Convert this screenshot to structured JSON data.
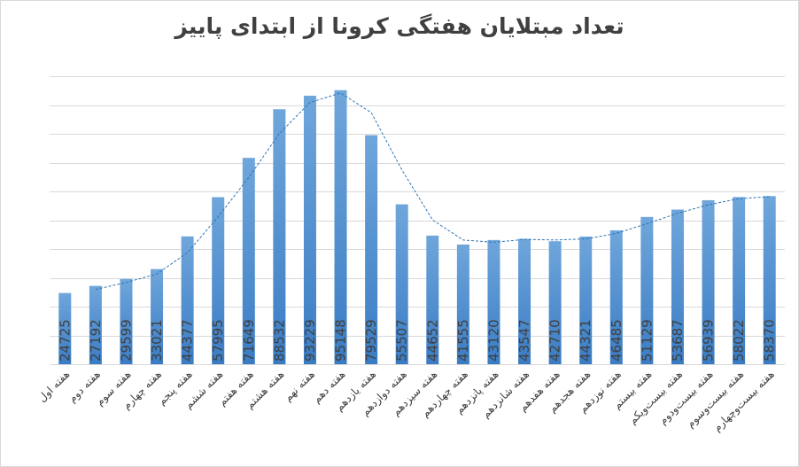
{
  "chart_data": {
    "type": "bar",
    "title": "تعداد مبتلایان هفتگی کرونا از ابتدای پاییز",
    "categories": [
      "هفته اول",
      "هفته دوم",
      "هفته سوم",
      "هفته چهارم",
      "هفته پنجم",
      "هفته ششم",
      "هفته هفتم",
      "هفته هشتم",
      "هفته نهم",
      "هفته دهم",
      "هفته یازدهم",
      "هفته دوازدهم",
      "هفته سیزدهم",
      "هفته چهاردهم",
      "هفته پانزدهم",
      "هفته شانزدهم",
      "هفته هفدهم",
      "هفته هجدهم",
      "هفته نوزدهم",
      "هفته بیستم",
      "هفته بیست‌ویکم",
      "هفته بیست‌ودوم",
      "هفته بیست‌وسوم",
      "هفته بیست‌وچهارم"
    ],
    "values": [
      24725,
      27192,
      29599,
      33021,
      44377,
      57995,
      71649,
      88532,
      93229,
      95148,
      79529,
      55507,
      44652,
      41555,
      43120,
      43547,
      42710,
      44321,
      46485,
      51129,
      53687,
      56939,
      58022,
      58370
    ],
    "value_labels": [
      "24725",
      "27192",
      "29599",
      "33021",
      "44377",
      "57995",
      "71649",
      "88532",
      "93229",
      "95148",
      "79529",
      "55507",
      "44652",
      "41555",
      "43120",
      "43547",
      "42710",
      "44321",
      "46485",
      "51129",
      "53687",
      "56939",
      "58022",
      "58370"
    ],
    "ylim": [
      0,
      100000
    ],
    "y_gridline_step": 10000,
    "grid": true,
    "y_axis_labels_shown": false,
    "trendline": "dotted moving average",
    "legend": "none",
    "colors": {
      "bar_top": "#6fa6db",
      "bar_bottom": "#3a7cc4",
      "trendline": "#2e75b6",
      "grid": "#d9d9d9",
      "text": "#404040"
    }
  }
}
